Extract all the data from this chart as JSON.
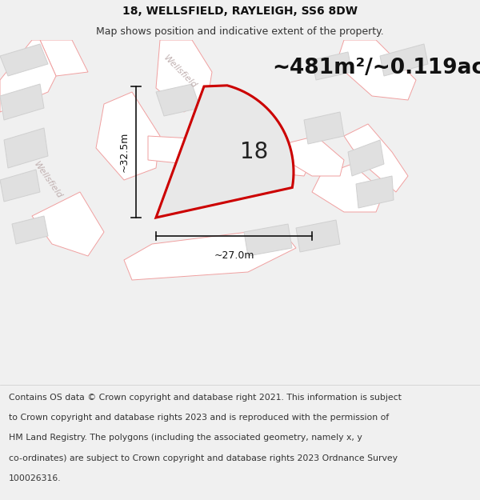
{
  "title_line1": "18, WELLSFIELD, RAYLEIGH, SS6 8DW",
  "title_line2": "Map shows position and indicative extent of the property.",
  "area_label": "~481m²/~0.119ac.",
  "plot_number": "18",
  "dim_vertical": "~32.5m",
  "dim_horizontal": "~27.0m",
  "bg_color": "#f0f0f0",
  "map_bg": "#f5f5f5",
  "road_color": "#f0a0a0",
  "road_fill": "#ffffff",
  "building_fill": "#e0e0e0",
  "building_edge": "#d0d0d0",
  "plot_fill": "#e8e8e8",
  "plot_edge": "#cc0000",
  "road_label_color": "#c0b0b0",
  "footer_bg": "#ffffff",
  "footer_text_color": "#333333",
  "title_fontsize": 10,
  "subtitle_fontsize": 9,
  "footer_fontsize": 7.8,
  "area_fontsize": 19,
  "plot_number_fontsize": 20,
  "dim_fontsize": 9,
  "road_label_fontsize": 8,
  "footer_lines": [
    "Contains OS data © Crown copyright and database right 2021. This information is subject",
    "to Crown copyright and database rights 2023 and is reproduced with the permission of",
    "HM Land Registry. The polygons (including the associated geometry, namely x, y",
    "co-ordinates) are subject to Crown copyright and database rights 2023 Ordnance Survey",
    "100026316."
  ]
}
